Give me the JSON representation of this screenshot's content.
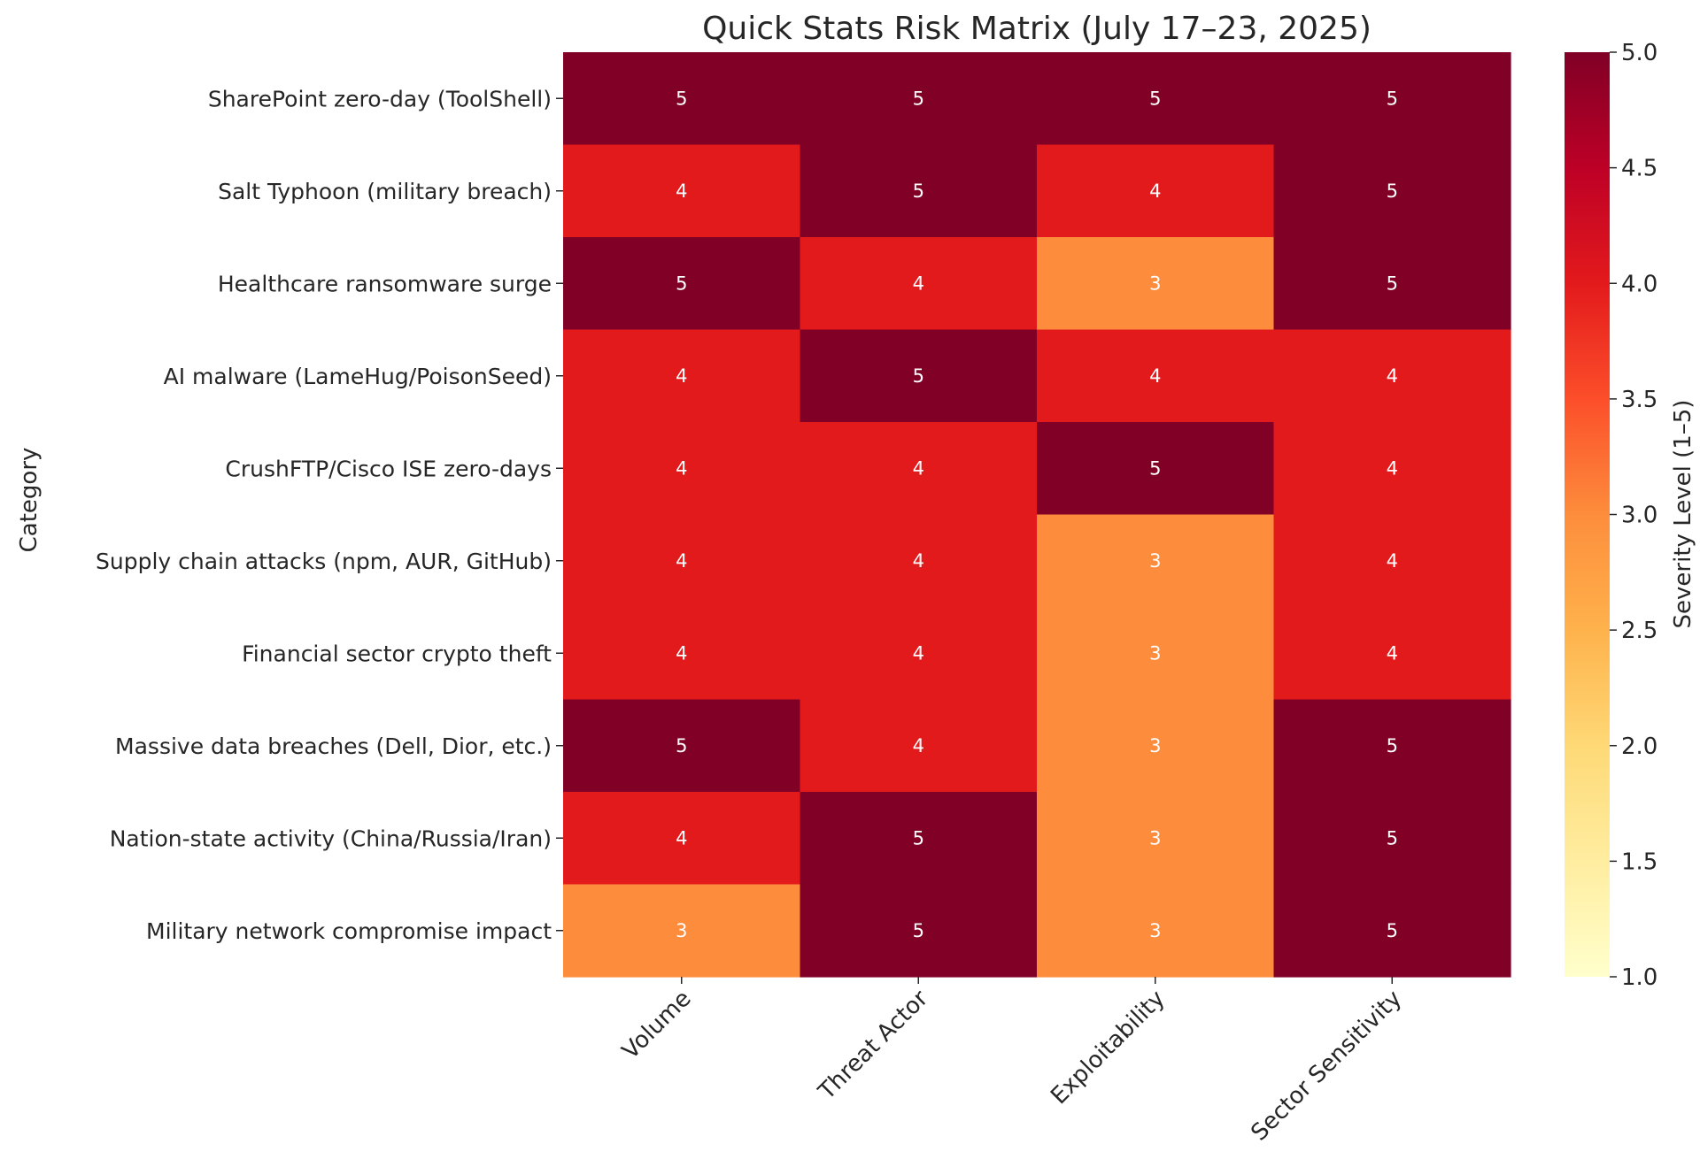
{
  "chart_data": {
    "type": "heatmap",
    "title": "Quick Stats Risk Matrix (July 17–23, 2025)",
    "ylabel": "Category",
    "xlabel": "",
    "columns": [
      "Volume",
      "Threat Actor",
      "Exploitability",
      "Sector Sensitivity"
    ],
    "rows": [
      "SharePoint zero-day (ToolShell)",
      "Salt Typhoon (military breach)",
      "Healthcare ransomware surge",
      "AI malware (LameHug/PoisonSeed)",
      "CrushFTP/Cisco ISE zero-days",
      "Supply chain attacks (npm, AUR, GitHub)",
      "Financial sector crypto theft",
      "Massive data breaches (Dell, Dior, etc.)",
      "Nation-state activity (China/Russia/Iran)",
      "Military network compromise impact"
    ],
    "values": [
      [
        5,
        5,
        5,
        5
      ],
      [
        4,
        5,
        4,
        5
      ],
      [
        5,
        4,
        3,
        5
      ],
      [
        4,
        5,
        4,
        4
      ],
      [
        4,
        4,
        5,
        4
      ],
      [
        4,
        4,
        3,
        4
      ],
      [
        4,
        4,
        3,
        4
      ],
      [
        5,
        4,
        3,
        5
      ],
      [
        4,
        5,
        3,
        5
      ],
      [
        3,
        5,
        3,
        5
      ]
    ],
    "colorbar": {
      "label": "Severity Level (1–5)",
      "range": [
        1.0,
        5.0
      ],
      "ticks": [
        "1.0",
        "1.5",
        "2.0",
        "2.5",
        "3.0",
        "3.5",
        "4.0",
        "4.5",
        "5.0"
      ],
      "colormap": "YlOrRd"
    },
    "cell_colors": {
      "3": "#fd8d3c",
      "4": "#e31a1c",
      "5": "#800026"
    },
    "annotation_color": "#ffffff"
  }
}
